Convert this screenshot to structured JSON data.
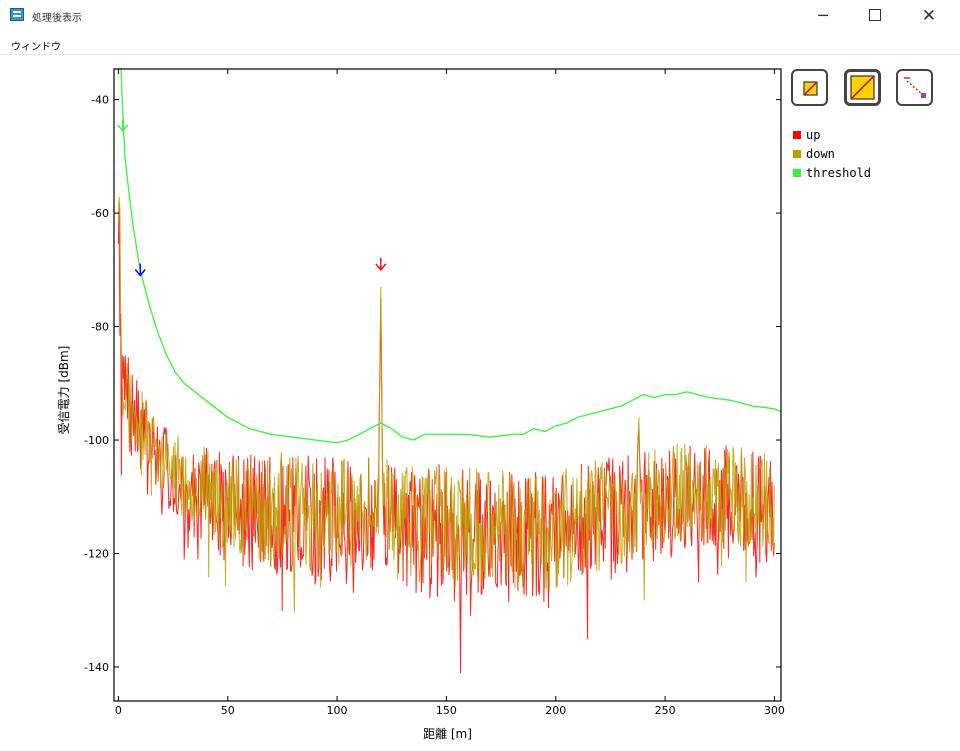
{
  "window": {
    "title": "処理後表示",
    "menu_label": "ウィンドウ",
    "controls": {
      "minimize": "─",
      "close": "✕"
    }
  },
  "toolbar": {
    "buttons": [
      {
        "name": "zoom-box-icon"
      },
      {
        "name": "zoom-fit-icon"
      },
      {
        "name": "zoom-diagonal-icon"
      }
    ]
  },
  "colors": {
    "up": "#ff0000",
    "down": "#b8a000",
    "threshold": "#3ef03e",
    "frame": "#000000"
  },
  "chart_data": {
    "type": "line",
    "title": "",
    "xlabel": "距離 [m]",
    "ylabel": "受信電力 [dBm]",
    "xlim": [
      -2,
      303
    ],
    "ylim": [
      -146,
      -34.6
    ],
    "xticks": [
      0,
      50,
      100,
      150,
      200,
      250,
      300
    ],
    "yticks": [
      -40,
      -60,
      -80,
      -100,
      -120,
      -140
    ],
    "legend_position": "right",
    "series": [
      {
        "name": "up",
        "color": "#ff0000",
        "noise": true,
        "seed": 7,
        "x": [
          0,
          2,
          5,
          10,
          20,
          30,
          50,
          80,
          100,
          119,
          120,
          121,
          140,
          170,
          200,
          230,
          237,
          238,
          239,
          260,
          300
        ],
        "y": [
          -56,
          -90,
          -95,
          -98,
          -104,
          -108,
          -112,
          -114,
          -114,
          -113,
          -75,
          -113,
          -116,
          -117,
          -117,
          -113,
          -112,
          -98,
          -112,
          -110,
          -112
        ],
        "noise_amp": [
          18,
          10,
          9,
          7,
          7,
          8,
          10,
          12,
          11,
          10,
          0,
          10,
          12,
          12,
          12,
          11,
          10,
          0,
          10,
          10,
          10
        ]
      },
      {
        "name": "down",
        "color": "#b8a000",
        "noise": true,
        "seed": 23,
        "x": [
          0,
          2,
          5,
          10,
          20,
          30,
          50,
          80,
          100,
          119,
          120,
          121,
          140,
          170,
          200,
          230,
          237,
          238,
          239,
          260,
          300
        ],
        "y": [
          -53,
          -88,
          -94,
          -97,
          -103,
          -107,
          -111,
          -113,
          -113,
          -112,
          -73,
          -112,
          -115,
          -116,
          -116,
          -112,
          -111,
          -96,
          -111,
          -109,
          -111
        ],
        "noise_amp": [
          16,
          9,
          8,
          6,
          6,
          7,
          9,
          11,
          10,
          9,
          0,
          9,
          11,
          11,
          11,
          10,
          9,
          0,
          9,
          9,
          9
        ]
      },
      {
        "name": "threshold",
        "color": "#3ef03e",
        "noise": false,
        "x": [
          1,
          2,
          3,
          5,
          7,
          10,
          14,
          18,
          22,
          26,
          30,
          40,
          50,
          60,
          70,
          80,
          90,
          100,
          105,
          110,
          115,
          120,
          125,
          130,
          135,
          140,
          150,
          160,
          170,
          180,
          185,
          190,
          195,
          200,
          205,
          210,
          215,
          220,
          225,
          230,
          235,
          240,
          245,
          250,
          255,
          260,
          265,
          270,
          280,
          290,
          300,
          303
        ],
        "y": [
          -33,
          -42,
          -50,
          -57,
          -63,
          -70,
          -76,
          -81,
          -85,
          -88,
          -90,
          -93,
          -96,
          -98,
          -99,
          -99.5,
          -100,
          -100.5,
          -100,
          -99,
          -98,
          -97,
          -98,
          -99.5,
          -100,
          -99,
          -99,
          -99,
          -99.5,
          -99,
          -99,
          -98,
          -98.5,
          -97.5,
          -97,
          -96,
          -95.5,
          -95,
          -94.5,
          -94,
          -93,
          -92,
          -92.5,
          -92,
          -92,
          -91.5,
          -92,
          -92.5,
          -93,
          -94,
          -94.5,
          -95
        ]
      }
    ],
    "markers": [
      {
        "x": 2,
        "y": -45.5,
        "color": "#3ef03e"
      },
      {
        "x": 10,
        "y": -71,
        "color": "#0000ff"
      },
      {
        "x": 120,
        "y": -70,
        "color": "#ff0000"
      }
    ]
  }
}
